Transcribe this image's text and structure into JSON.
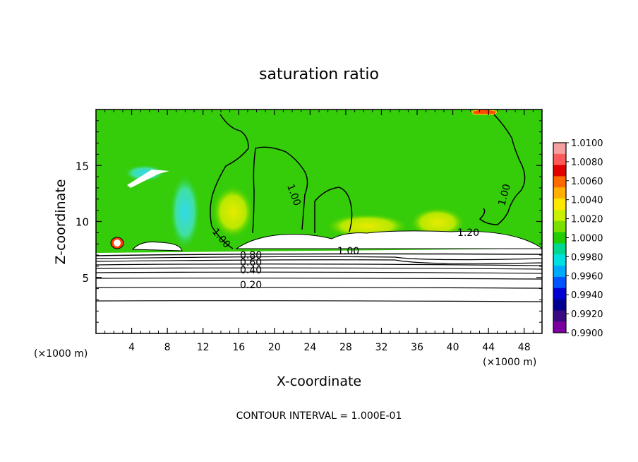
{
  "chart_data": {
    "type": "heatmap",
    "title": "saturation ratio",
    "xlabel": "X-coordinate",
    "ylabel": "Z-coordinate",
    "x_unit_left": "(×1000 m)",
    "x_unit_right": "(×1000 m)",
    "footer": "CONTOUR INTERVAL = 1.000E-01",
    "xlim": [
      0,
      50
    ],
    "ylim": [
      0,
      20
    ],
    "x_ticks": [
      "4",
      "8",
      "12",
      "16",
      "20",
      "24",
      "28",
      "32",
      "36",
      "40",
      "44",
      "48"
    ],
    "y_ticks": [
      "5",
      "10",
      "15"
    ],
    "colorbar": {
      "labels": [
        "1.0100",
        "1.0080",
        "1.0060",
        "1.0040",
        "1.0020",
        "1.0000",
        "0.9980",
        "0.9960",
        "0.9940",
        "0.9920",
        "0.9900"
      ],
      "colors": [
        "#f4a0a0",
        "#ff5a5a",
        "#e00000",
        "#ff6a00",
        "#ffb000",
        "#ffe800",
        "#c8f000",
        "#7be000",
        "#22cc00",
        "#00d890",
        "#00e0e0",
        "#00aaff",
        "#0055ff",
        "#0000d0",
        "#000090",
        "#3a0a80",
        "#7a00a0"
      ]
    },
    "contour_labels": [
      "1.00",
      "1.00",
      "1.00",
      "1.00",
      "1.20",
      "0.80",
      "0.60",
      "0.40",
      "0.20"
    ]
  }
}
